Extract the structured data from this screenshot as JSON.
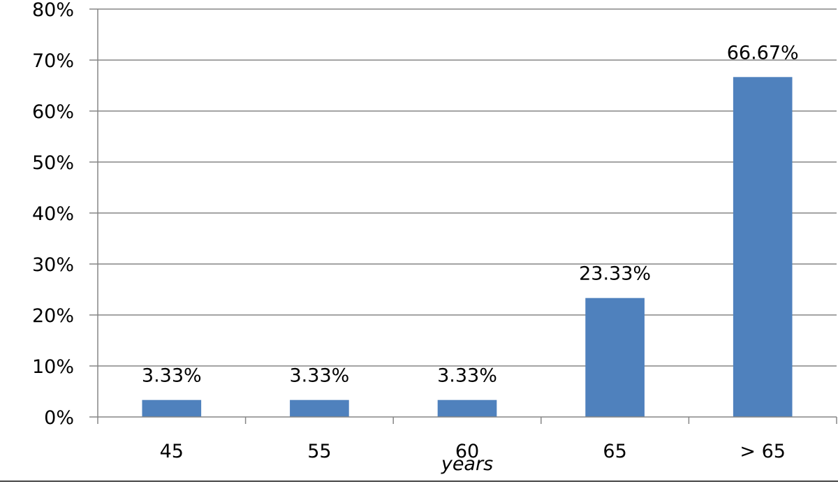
{
  "chart_data": {
    "type": "bar",
    "categories": [
      "45",
      "55",
      "60",
      "65",
      "> 65"
    ],
    "values": [
      3.33,
      3.33,
      3.33,
      23.33,
      66.67
    ],
    "data_labels": [
      "3.33%",
      "3.33%",
      "3.33%",
      "23.33%",
      "66.67%"
    ],
    "xlabel": "years",
    "ylabel": "",
    "ylim": [
      0,
      80
    ],
    "y_ticks": [
      "0%",
      "10%",
      "20%",
      "30%",
      "40%",
      "50%",
      "60%",
      "70%",
      "80%"
    ],
    "bar_color": "#4f81bd",
    "gridlines": true,
    "legend": "none"
  }
}
